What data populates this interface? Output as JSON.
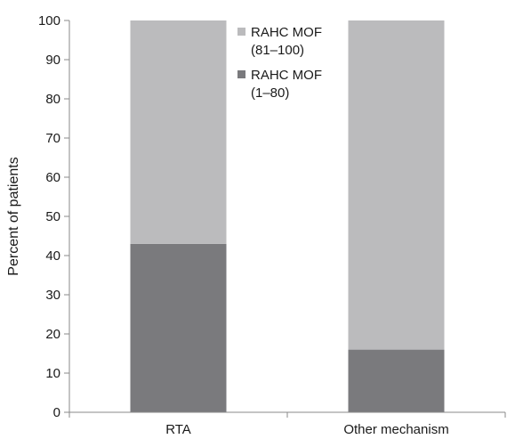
{
  "chart_data": {
    "type": "bar",
    "stacked": true,
    "categories": [
      "RTA",
      "Other mechanism"
    ],
    "series": [
      {
        "name": "RAHC MOF (1–80)",
        "values": [
          43,
          16
        ],
        "color": "#7a7a7d"
      },
      {
        "name": "RAHC MOF (81–100)",
        "values": [
          57,
          84
        ],
        "color": "#bbbbbd"
      }
    ],
    "legend": [
      {
        "lines": [
          "RAHC MOF",
          "(81–100)"
        ],
        "color": "#bbbbbd"
      },
      {
        "lines": [
          "RAHC MOF",
          "(1–80)"
        ],
        "color": "#7a7a7d"
      }
    ],
    "legend_position": "top-center",
    "ylabel": "Percent of patients",
    "xlabel": "",
    "ylim": [
      0,
      100
    ],
    "yticks": [
      "0",
      "10",
      "20",
      "30",
      "40",
      "50",
      "60",
      "70",
      "80",
      "90",
      "100"
    ],
    "grid": false
  }
}
